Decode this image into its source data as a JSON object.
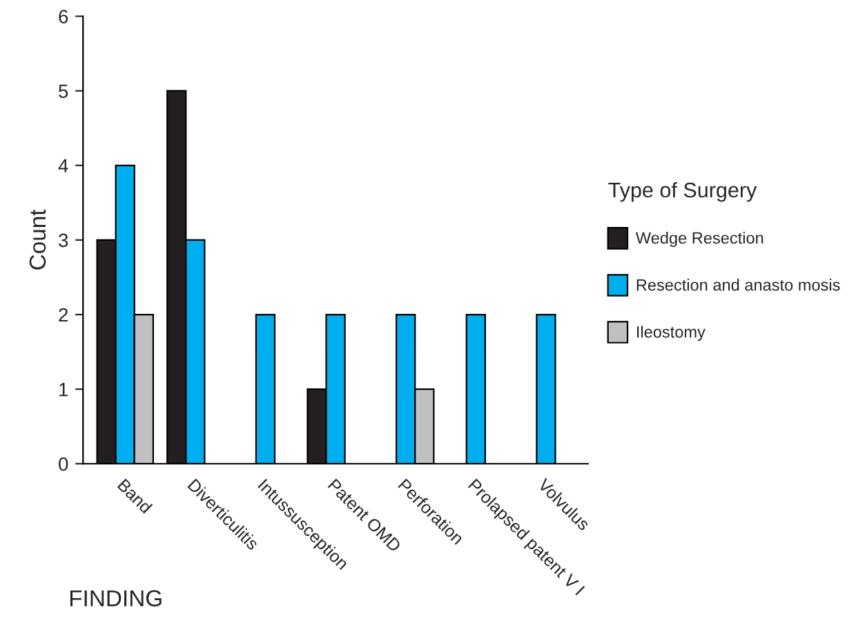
{
  "chart_data": {
    "type": "bar",
    "xlabel": "FINDING",
    "ylabel": "Count",
    "legend_title": "Type of Surgery",
    "categories": [
      "Band",
      "Diverticulitis",
      "Intussusception",
      "Patent OMD",
      "Perforation",
      "Prolapsed patent V I",
      "Volvulus"
    ],
    "series": [
      {
        "name": "Wedge Resection",
        "color": "#231f20",
        "values": [
          3,
          5,
          null,
          1,
          null,
          null,
          null
        ]
      },
      {
        "name": "Resection and anasto mosis",
        "color": "#00aeef",
        "values": [
          4,
          3,
          2,
          2,
          2,
          2,
          2
        ]
      },
      {
        "name": "Ileostomy",
        "color": "#c0c0c2",
        "values": [
          2,
          null,
          null,
          null,
          1,
          null,
          null
        ]
      }
    ],
    "ylim": [
      0,
      6
    ],
    "yticks": [
      0,
      1,
      2,
      3,
      4,
      5,
      6
    ],
    "grid": false,
    "legend": "right"
  }
}
